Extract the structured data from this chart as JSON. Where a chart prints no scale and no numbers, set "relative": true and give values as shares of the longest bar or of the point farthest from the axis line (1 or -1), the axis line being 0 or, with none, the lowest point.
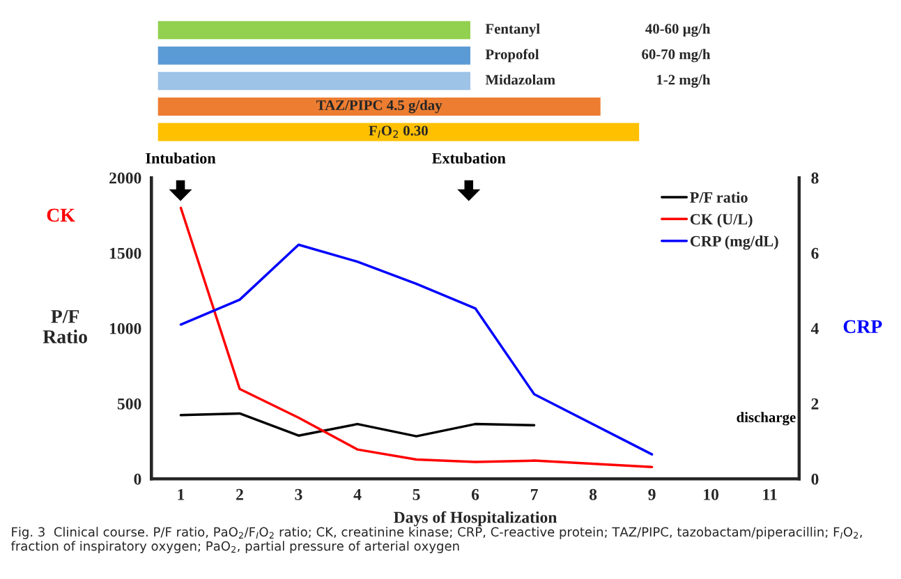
{
  "chart_data": [
    {
      "type": "bar",
      "orientation": "horizontal",
      "categories": [
        "Fentanyl",
        "Propofol",
        "Midazolam",
        null,
        null
      ],
      "relative": true,
      "values": [
        0.65,
        0.65,
        0.65,
        0.92,
        1
      ],
      "colors": [
        "#92d050",
        "#5b9bd5",
        "#9dc3e6",
        "#ed7d31",
        "#ffc000"
      ],
      "annotations": [
        "40-60 µg/h",
        "60-70 mg/h",
        "1-2 mg/h",
        "TAZ/PIPC 4.5 g/day",
        "F$_{I}$O$_{2}$ 0.30"
      ],
      "tick_labels": false
    },
    {
      "type": "line",
      "x": [
        1,
        2,
        3,
        4,
        5,
        6,
        7,
        8,
        9
      ],
      "series": [
        {
          "name": "P/F ratio",
          "color": "#000000",
          "values": [
            423,
            434,
            287,
            364,
            283,
            364,
            356,
            null,
            null
          ]
        },
        {
          "name": "CK (U/L)",
          "color": "#ff0000",
          "values": [
            1800,
            597,
            406,
            195,
            128,
            112,
            121,
            null,
            79
          ]
        },
        {
          "name": "CRP (mg/dL)",
          "color": "#0000ff",
          "axis": "y2",
          "values": [
            4.1,
            4.76,
            6.22,
            5.77,
            5.18,
            4.53,
            2.25,
            null,
            0.65
          ]
        }
      ],
      "xlabel": "Days of Hospitalization",
      "ylabel": "P/F\nRatio",
      "y2label": "CRP",
      "xlim": [
        0.5,
        11.5
      ],
      "xticks": [
        1,
        2,
        3,
        4,
        5,
        6,
        7,
        8,
        9,
        10,
        11
      ],
      "ylim": [
        0,
        2000
      ],
      "yticks": [
        0,
        500,
        1000,
        1500,
        2000
      ],
      "y2lim": [
        0,
        8
      ],
      "y2ticks": [
        0,
        2,
        4,
        6,
        8
      ],
      "legend": "top right",
      "grid": false,
      "annotations": [
        "Intubation",
        "Extubation",
        "CK",
        "discharge",
        "Fig. 3  Clinical course. P/F ratio, PaO$_{2}$/F$_{I}$O$_{2}$ ratio; CK, creatinine kinase; CRP, C-reactive protein; TAZ/PIPC, tazobactam/piperacillin; F$_{I}$O$_{2}$, fraction of inspiratory oxygen; PaO$_{2}$, partial pressure of arterial oxygen"
      ]
    }
  ]
}
